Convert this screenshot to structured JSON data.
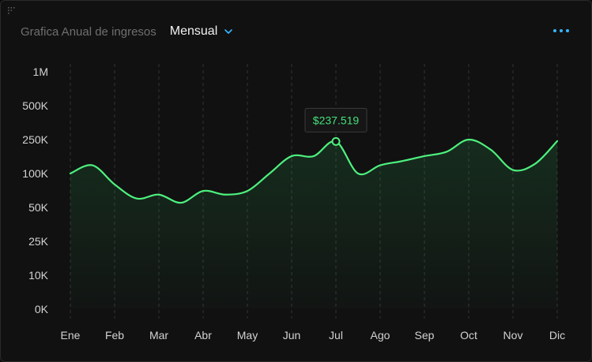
{
  "header": {
    "title": "Grafica Anual de ingresos",
    "period": "Mensual"
  },
  "icons": {
    "drag": "drag-handle-icon",
    "dropdown": "chevron-down-icon",
    "more": "more-horizontal-icon"
  },
  "colors": {
    "line": "#4ef07e",
    "accent": "#38b6ff",
    "tooltip_text": "#44e07a",
    "background": "#111111"
  },
  "tooltip": {
    "label": "$237.519",
    "month": "Jul"
  },
  "chart_data": {
    "type": "area",
    "title": "Grafica Anual de ingresos",
    "xlabel": "",
    "ylabel": "",
    "y_scale": "categorical-log",
    "y_ticks": [
      "1M",
      "500K",
      "250K",
      "100K",
      "50K",
      "25K",
      "10K",
      "0K"
    ],
    "categories": [
      "Ene",
      "Feb",
      "Mar",
      "Abr",
      "May",
      "Jun",
      "Jul",
      "Ago",
      "Sep",
      "Oct",
      "Nov",
      "Dic"
    ],
    "grid": "vertical-dashed",
    "series": [
      {
        "values": [
          {
            "x": "Ene",
            "y": 100000
          },
          {
            "x": "Ene",
            "y": 125000
          },
          {
            "x": "Feb",
            "y": 80000
          },
          {
            "x": "Feb",
            "y": 60000
          },
          {
            "x": "Mar",
            "y": 65000
          },
          {
            "x": "Mar",
            "y": 55000
          },
          {
            "x": "Abr",
            "y": 70000
          },
          {
            "x": "Abr",
            "y": 65000
          },
          {
            "x": "May",
            "y": 70000
          },
          {
            "x": "May",
            "y": 100000
          },
          {
            "x": "Jun",
            "y": 160000
          },
          {
            "x": "Jun",
            "y": 160000
          },
          {
            "x": "Jul",
            "y": 237519
          },
          {
            "x": "Jul",
            "y": 100000
          },
          {
            "x": "Ago",
            "y": 125000
          },
          {
            "x": "Ago",
            "y": 140000
          },
          {
            "x": "Sep",
            "y": 160000
          },
          {
            "x": "Sep",
            "y": 180000
          },
          {
            "x": "Oct",
            "y": 250000
          },
          {
            "x": "Oct",
            "y": 190000
          },
          {
            "x": "Nov",
            "y": 110000
          },
          {
            "x": "Nov",
            "y": 130000
          },
          {
            "x": "Dic",
            "y": 240000
          }
        ]
      }
    ]
  }
}
